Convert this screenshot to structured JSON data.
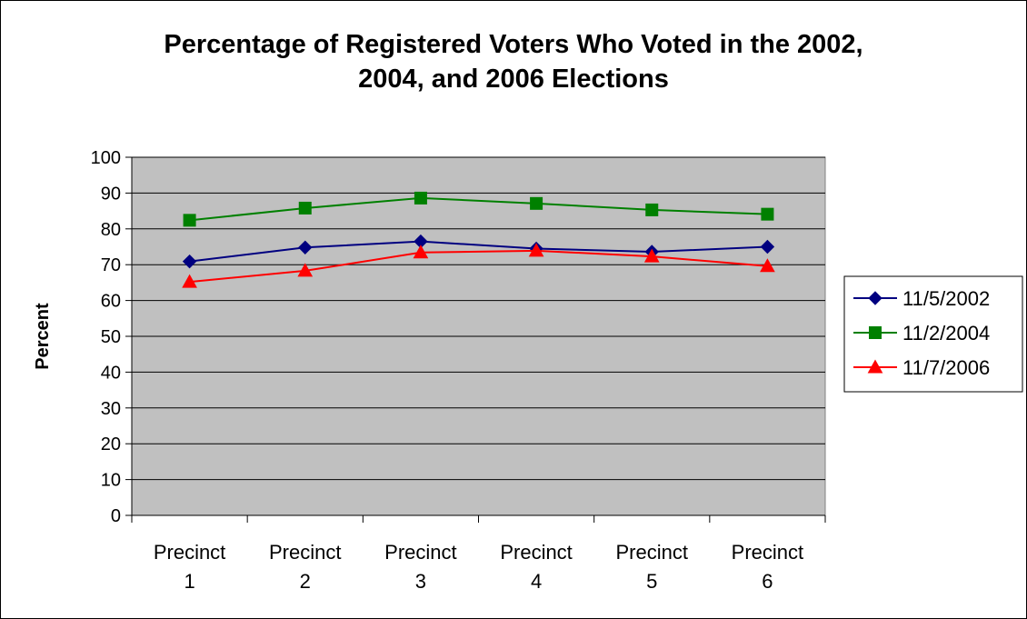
{
  "chart_data": {
    "type": "line",
    "title": "Percentage of Registered Voters Who Voted in the 2002, 2004, and 2006 Elections",
    "title_lines": [
      "Percentage of Registered Voters Who Voted in the 2002,",
      "2004, and 2006 Elections"
    ],
    "xlabel": "",
    "ylabel": "Percent",
    "categories": [
      [
        "Precinct",
        "1"
      ],
      [
        "Precinct",
        "2"
      ],
      [
        "Precinct",
        "3"
      ],
      [
        "Precinct",
        "4"
      ],
      [
        "Precinct",
        "5"
      ],
      [
        "Precinct",
        "6"
      ]
    ],
    "ylim": [
      0,
      100
    ],
    "yticks": [
      0,
      10,
      20,
      30,
      40,
      50,
      60,
      70,
      80,
      90,
      100
    ],
    "grid": true,
    "plot_background": "#c0c0c0",
    "legend_position": "right",
    "series": [
      {
        "name": "11/5/2002",
        "color": "#000080",
        "marker": "diamond",
        "values": [
          70.9,
          74.8,
          76.5,
          74.5,
          73.6,
          75.0
        ]
      },
      {
        "name": "11/2/2004",
        "color": "#008000",
        "marker": "square",
        "values": [
          82.4,
          85.8,
          88.6,
          87.1,
          85.3,
          84.1
        ]
      },
      {
        "name": "11/7/2006",
        "color": "#ff0000",
        "marker": "triangle",
        "values": [
          65.2,
          68.3,
          73.4,
          73.9,
          72.3,
          69.6
        ]
      }
    ]
  }
}
